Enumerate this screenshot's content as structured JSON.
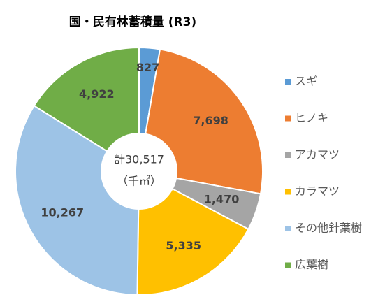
{
  "chart_data": {
    "type": "donut",
    "title": "国・民有林蓄積量 (R3)",
    "center_label": "計30,517",
    "center_unit": "（千㎡）",
    "categories": [
      "スギ",
      "ヒノキ",
      "アカマツ",
      "カラマツ",
      "その他針葉樹",
      "広葉樹"
    ],
    "values": [
      827,
      7698,
      1470,
      5335,
      10267,
      4922
    ],
    "value_labels": [
      "827",
      "7,698",
      "1,470",
      "5,335",
      "10,267",
      "4,922"
    ],
    "colors": [
      "#5b9bd5",
      "#ed7d31",
      "#a5a5a5",
      "#ffc000",
      "#9dc3e6",
      "#70ad47"
    ],
    "legend": "right"
  }
}
